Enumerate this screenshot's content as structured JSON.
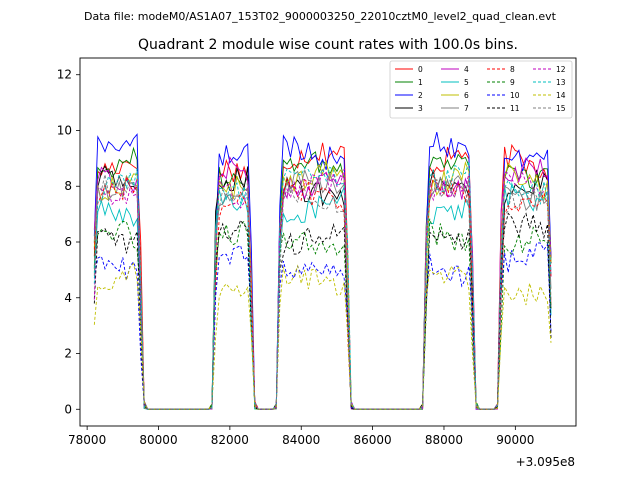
{
  "header_text": "Data file: modeM0/AS1A07_153T02_9000003250_22010cztM0_level2_quad_clean.evt",
  "chart_data": {
    "type": "line",
    "title": "Quadrant 2 module wise count rates with 100.0s bins.",
    "xlabel": "",
    "ylabel": "",
    "x_offset_label": "+3.095e8",
    "xlim": [
      77800,
      91700
    ],
    "ylim": [
      -0.6,
      12.6
    ],
    "x_ticks": [
      78000,
      80000,
      82000,
      84000,
      86000,
      88000,
      90000
    ],
    "x_tick_labels": [
      "78000",
      "80000",
      "82000",
      "84000",
      "86000",
      "88000",
      "90000"
    ],
    "y_ticks": [
      0,
      2,
      4,
      6,
      8,
      10,
      12
    ],
    "y_tick_labels": [
      "0",
      "2",
      "4",
      "6",
      "8",
      "10",
      "12"
    ],
    "gti_segments": [
      {
        "start": 78200,
        "end": 79500
      },
      {
        "start": 81600,
        "end": 82600
      },
      {
        "start": 83400,
        "end": 85300
      },
      {
        "start": 87500,
        "end": 88800
      },
      {
        "start": 89600,
        "end": 91000
      }
    ],
    "legend_placement": "upper right",
    "series": [
      {
        "name": "0",
        "color": "#ff0000",
        "dash": "solid",
        "level": 8.9
      },
      {
        "name": "1",
        "color": "#008000",
        "dash": "solid",
        "level": 8.6
      },
      {
        "name": "2",
        "color": "#0000ff",
        "dash": "solid",
        "level": 9.2
      },
      {
        "name": "3",
        "color": "#000000",
        "dash": "solid",
        "level": 8.0
      },
      {
        "name": "4",
        "color": "#bf00bf",
        "dash": "solid",
        "level": 8.3
      },
      {
        "name": "5",
        "color": "#00bfbf",
        "dash": "solid",
        "level": 7.3
      },
      {
        "name": "6",
        "color": "#bfbf00",
        "dash": "solid",
        "level": 8.2
      },
      {
        "name": "7",
        "color": "#808080",
        "dash": "solid",
        "level": 7.8
      },
      {
        "name": "8",
        "color": "#ff0000",
        "dash": "dashed",
        "level": 7.6
      },
      {
        "name": "9",
        "color": "#008000",
        "dash": "dashed",
        "level": 6.1
      },
      {
        "name": "10",
        "color": "#0000ff",
        "dash": "dashed",
        "level": 5.2
      },
      {
        "name": "11",
        "color": "#000000",
        "dash": "dashed",
        "level": 6.3
      },
      {
        "name": "12",
        "color": "#bf00bf",
        "dash": "dashed",
        "level": 7.9
      },
      {
        "name": "13",
        "color": "#00bfbf",
        "dash": "dashed",
        "level": 8.1
      },
      {
        "name": "14",
        "color": "#bfbf00",
        "dash": "dashed",
        "level": 4.5
      },
      {
        "name": "15",
        "color": "#808080",
        "dash": "dashed",
        "level": 7.7
      }
    ]
  }
}
